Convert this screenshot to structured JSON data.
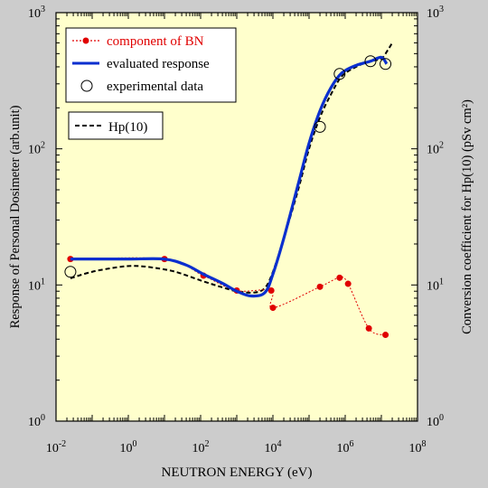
{
  "colors": {
    "background": "#cccccc",
    "plot_area": "#ffffcc",
    "bn_series": "#e00000",
    "evaluated_series": "#0a2fcf",
    "hp10_series": "#000000",
    "frame": "#000000"
  },
  "chart_data": {
    "type": "line",
    "x_scale": "log",
    "y_scale": "log",
    "xlim": [
      0.01,
      100000000
    ],
    "ylim": [
      1,
      1000
    ],
    "y2lim": [
      1,
      1000
    ],
    "xlabel": "NEUTRON ENERGY (eV)",
    "ylabel": "Response of Personal  Dosimeter (arb.unit)",
    "y2label": "Conversion coefficient for Hp(10)  (pSv cm²)",
    "x_ticks": [
      {
        "value": 0.01,
        "base": "10",
        "exp": "-2"
      },
      {
        "value": 1,
        "base": "10",
        "exp": "0"
      },
      {
        "value": 100,
        "base": "10",
        "exp": "2"
      },
      {
        "value": 10000,
        "base": "10",
        "exp": "4"
      },
      {
        "value": 1000000,
        "base": "10",
        "exp": "6"
      },
      {
        "value": 100000000,
        "base": "10",
        "exp": "8"
      }
    ],
    "y_ticks": [
      {
        "value": 1,
        "base": "10",
        "exp": "0"
      },
      {
        "value": 10,
        "base": "10",
        "exp": "1"
      },
      {
        "value": 100,
        "base": "10",
        "exp": "2"
      },
      {
        "value": 1000,
        "base": "10",
        "exp": "3"
      }
    ],
    "y2_ticks": [
      {
        "value": 1,
        "base": "10",
        "exp": "0"
      },
      {
        "value": 10,
        "base": "10",
        "exp": "1"
      },
      {
        "value": 100,
        "base": "10",
        "exp": "2"
      },
      {
        "value": 1000,
        "base": "10",
        "exp": "3"
      }
    ],
    "legend": {
      "placement": "top-left",
      "entries": [
        {
          "label": "component of BN",
          "series": "bn"
        },
        {
          "label": "evaluated response",
          "series": "evaluated"
        },
        {
          "label": "experimental data",
          "series": "experimental"
        }
      ],
      "hp_entry": {
        "label": "Hp(10)",
        "series": "hp10"
      }
    },
    "series": [
      {
        "key": "bn",
        "name": "component of BN",
        "style": "dotted-line-filled-circles",
        "x": [
          0.025,
          10,
          120,
          1000,
          9000,
          10000,
          200000,
          700000,
          1200000,
          4500000,
          13000000
        ],
        "y": [
          15.5,
          15.5,
          11.7,
          9.1,
          9.1,
          6.8,
          9.7,
          11.3,
          10.2,
          4.8,
          4.3
        ]
      },
      {
        "key": "evaluated",
        "name": "evaluated response",
        "style": "solid-line",
        "x": [
          0.025,
          0.1,
          1,
          10,
          40,
          120,
          400,
          1000,
          2500,
          6000,
          10000,
          20000,
          50000,
          100000,
          200000,
          400000,
          800000,
          2000000,
          5000000,
          10000000,
          14000000
        ],
        "y": [
          15.5,
          15.5,
          15.5,
          15.5,
          14,
          12,
          10.3,
          9,
          8.3,
          8.8,
          12,
          22,
          55,
          110,
          190,
          280,
          360,
          410,
          440,
          470,
          420
        ]
      },
      {
        "key": "experimental",
        "name": "experimental data",
        "style": "open-circles",
        "x": [
          0.025,
          200000,
          700000,
          5000000,
          13000000
        ],
        "y": [
          12.5,
          145,
          355,
          440,
          420
        ]
      },
      {
        "key": "hp10",
        "name": "Hp(10)",
        "style": "dashed-line",
        "x": [
          0.025,
          0.1,
          0.5,
          1.5,
          5,
          20,
          100,
          400,
          1000,
          3000,
          6000,
          10000,
          20000,
          50000,
          100000,
          200000,
          400000,
          800000,
          2000000,
          5000000,
          10000000,
          15000000,
          20000000
        ],
        "y": [
          11.2,
          12.5,
          13.5,
          13.8,
          13.4,
          12.5,
          10.8,
          9.6,
          9.0,
          8.8,
          9.5,
          12.5,
          22,
          50,
          100,
          170,
          250,
          340,
          400,
          440,
          460,
          530,
          600
        ]
      }
    ]
  }
}
